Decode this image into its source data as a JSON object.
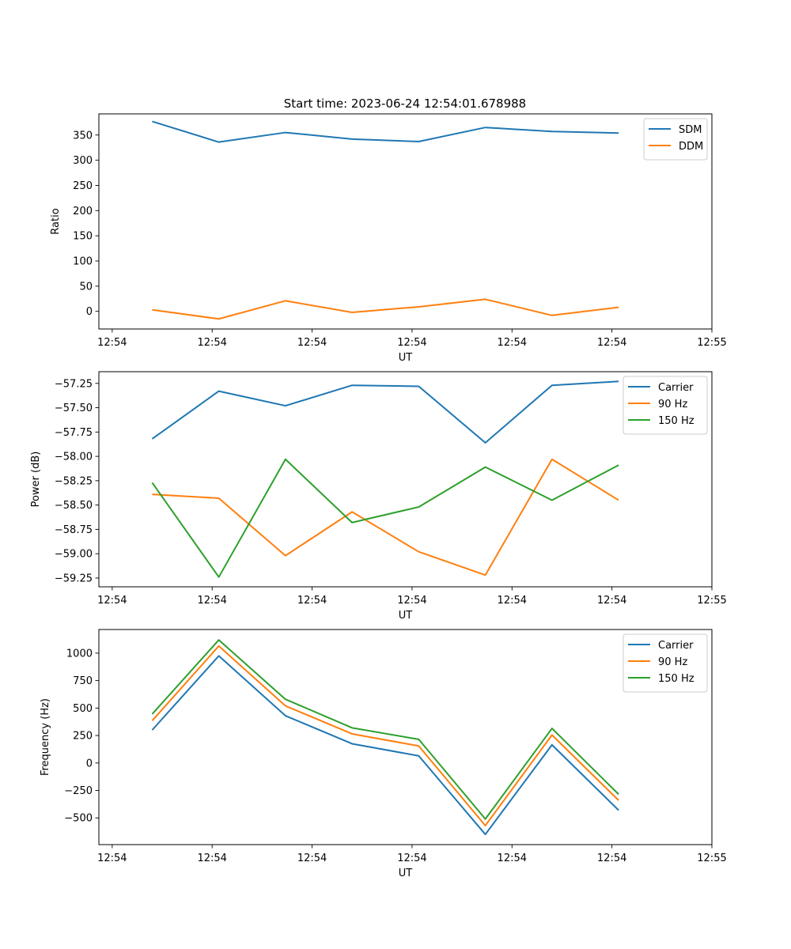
{
  "suptitle": "Start time: 2023-06-24 12:54:01.678988",
  "chart_data": [
    {
      "type": "line",
      "title": "Start time: 2023-06-24 12:54:01.678988",
      "xlabel": "UT",
      "ylabel": "Ratio",
      "x": [
        1,
        2,
        3,
        4,
        5,
        6,
        7,
        8
      ],
      "xlim": [
        0.2,
        9.4
      ],
      "xticks": [
        0.4,
        1.9,
        3.4,
        4.9,
        6.4,
        7.9,
        9.4
      ],
      "xticklabels": [
        "12:54",
        "12:54",
        "12:54",
        "12:54",
        "12:54",
        "12:54",
        "12:55"
      ],
      "ylim": [
        -35,
        392
      ],
      "yticks": [
        0,
        50,
        100,
        150,
        200,
        250,
        300,
        350
      ],
      "yticklabels": [
        "0",
        "50",
        "100",
        "150",
        "200",
        "250",
        "300",
        "350"
      ],
      "legend": "top-right",
      "series": [
        {
          "name": "SDM",
          "color": "#1f77b4",
          "values": [
            377,
            336,
            355,
            342,
            337,
            365,
            357,
            354
          ]
        },
        {
          "name": "DDM",
          "color": "#ff7f0e",
          "values": [
            3,
            -15,
            21,
            -2,
            9,
            24,
            -8,
            8
          ]
        }
      ]
    },
    {
      "type": "line",
      "xlabel": "UT",
      "ylabel": "Power (dB)",
      "x": [
        1,
        2,
        3,
        4,
        5,
        6,
        7,
        8
      ],
      "xlim": [
        0.2,
        9.4
      ],
      "xticks": [
        0.4,
        1.9,
        3.4,
        4.9,
        6.4,
        7.9,
        9.4
      ],
      "xticklabels": [
        "12:54",
        "12:54",
        "12:54",
        "12:54",
        "12:54",
        "12:54",
        "12:55"
      ],
      "ylim": [
        -59.34,
        -57.13
      ],
      "yticks": [
        -59.25,
        -59.0,
        -58.75,
        -58.5,
        -58.25,
        -58.0,
        -57.75,
        -57.5,
        -57.25
      ],
      "yticklabels": [
        "−59.25",
        "−59.00",
        "−58.75",
        "−58.50",
        "−58.25",
        "−58.00",
        "−57.75",
        "−57.50",
        "−57.25"
      ],
      "legend": "top-right",
      "series": [
        {
          "name": "Carrier",
          "color": "#1f77b4",
          "values": [
            -57.82,
            -57.33,
            -57.48,
            -57.27,
            -57.28,
            -57.86,
            -57.27,
            -57.23
          ]
        },
        {
          "name": "90 Hz",
          "color": "#ff7f0e",
          "values": [
            -58.39,
            -58.43,
            -59.02,
            -58.57,
            -58.98,
            -59.22,
            -58.03,
            -58.45
          ]
        },
        {
          "name": "150 Hz",
          "color": "#2ca02c",
          "values": [
            -58.27,
            -59.24,
            -58.03,
            -58.68,
            -58.52,
            -58.11,
            -58.45,
            -58.09
          ]
        }
      ]
    },
    {
      "type": "line",
      "xlabel": "UT",
      "ylabel": "Frequency (Hz)",
      "x": [
        1,
        2,
        3,
        4,
        5,
        6,
        7,
        8
      ],
      "xlim": [
        0.2,
        9.4
      ],
      "xticks": [
        0.4,
        1.9,
        3.4,
        4.9,
        6.4,
        7.9,
        9.4
      ],
      "xticklabels": [
        "12:54",
        "12:54",
        "12:54",
        "12:54",
        "12:54",
        "12:54",
        "12:55"
      ],
      "ylim": [
        -743,
        1215
      ],
      "yticks": [
        -500,
        -250,
        0,
        250,
        500,
        750,
        1000
      ],
      "yticklabels": [
        "−500",
        "−250",
        "0",
        "250",
        "500",
        "750",
        "1000"
      ],
      "legend": "top-right",
      "series": [
        {
          "name": "Carrier",
          "color": "#1f77b4",
          "values": [
            300,
            975,
            430,
            175,
            65,
            -650,
            165,
            -430
          ]
        },
        {
          "name": "90 Hz",
          "color": "#ff7f0e",
          "values": [
            385,
            1065,
            520,
            265,
            155,
            -570,
            255,
            -340
          ]
        },
        {
          "name": "150 Hz",
          "color": "#2ca02c",
          "values": [
            445,
            1120,
            580,
            320,
            215,
            -510,
            315,
            -285
          ]
        }
      ]
    }
  ]
}
